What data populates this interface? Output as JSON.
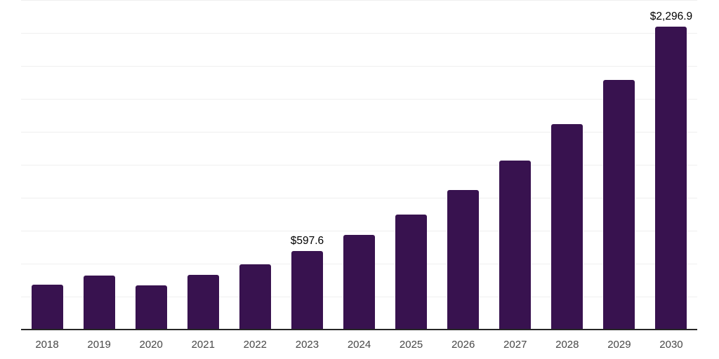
{
  "chart": {
    "background_color": "#ffffff",
    "bar_color": "#38124f",
    "grid_color": "#efefef",
    "axis_line_color": "#262626",
    "tick_label_color": "#474747",
    "data_label_color": "#000000"
  },
  "chart_data": {
    "type": "bar",
    "title": "",
    "xlabel": "",
    "ylabel": "",
    "legend": "none",
    "grid": "horizontal",
    "ylim": [
      0,
      2500
    ],
    "gridline_interval": 250,
    "categories": [
      "2018",
      "2019",
      "2020",
      "2021",
      "2022",
      "2023",
      "2024",
      "2025",
      "2026",
      "2027",
      "2028",
      "2029",
      "2030"
    ],
    "values": [
      338,
      409,
      334,
      415,
      497,
      597.6,
      720,
      872,
      1058,
      1282,
      1556,
      1892,
      2296.9
    ],
    "data_labels": {
      "2023": "$597.6",
      "2030": "$2,296.9"
    }
  }
}
